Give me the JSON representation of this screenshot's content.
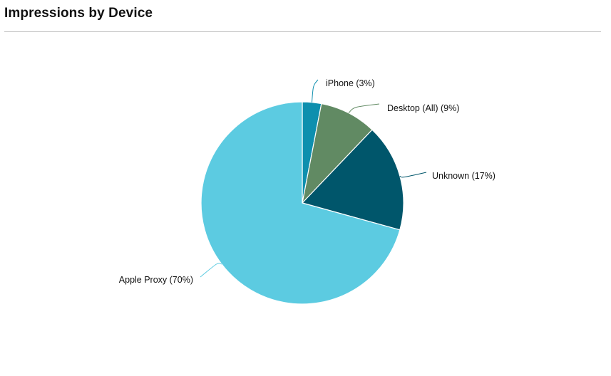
{
  "header": {
    "title": "Impressions by Device"
  },
  "chart_data": {
    "type": "pie",
    "title": "Impressions by Device",
    "slices": [
      {
        "name": "iPhone",
        "value": 3,
        "label": "iPhone (3%)",
        "color": "#0e8fae"
      },
      {
        "name": "Desktop (All)",
        "value": 9,
        "label": "Desktop (All) (9%)",
        "color": "#618a63"
      },
      {
        "name": "Unknown",
        "value": 17,
        "label": "Unknown (17%)",
        "color": "#00566b"
      },
      {
        "name": "Apple Proxy",
        "value": 70,
        "label": "Apple Proxy (70%)",
        "color": "#5ccbe1"
      }
    ],
    "start_angle": "12 o'clock",
    "direction": "clockwise",
    "legend": "none",
    "labels": "outside-with-leader-lines"
  }
}
